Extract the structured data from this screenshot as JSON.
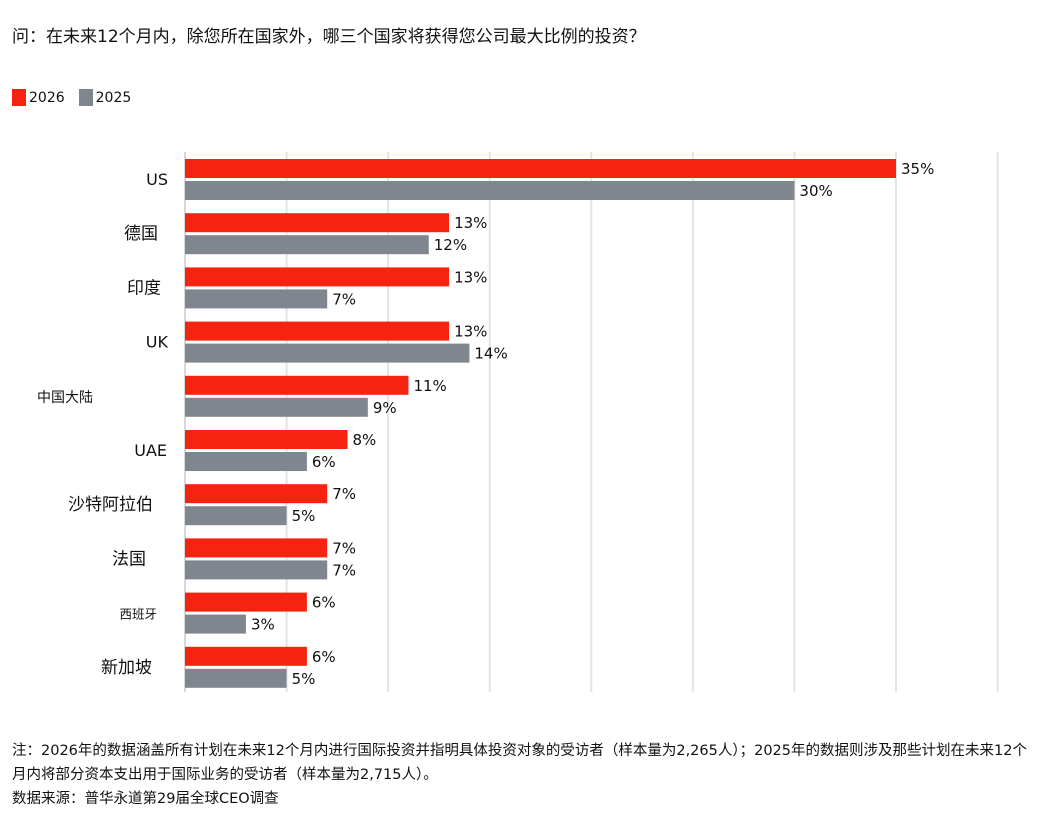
{
  "colors": {
    "2026": "#f5230f",
    "2025": "#808690",
    "grid": "#e3e3e3"
  },
  "chart_data": {
    "type": "bar",
    "orientation": "horizontal",
    "title": "问：在未来12个月内，除您所在国家外，哪三个国家将获得您公司最大比例的投资？",
    "categories": [
      "US",
      "德国",
      "印度",
      "UK",
      "中国大陆",
      "UAE",
      "沙特阿拉伯",
      "法国",
      "西班牙",
      "新加坡"
    ],
    "series": [
      {
        "name": "2026",
        "values": [
          35,
          13,
          13,
          13,
          11,
          8,
          7,
          7,
          6,
          6
        ]
      },
      {
        "name": "2025",
        "values": [
          30,
          12,
          7,
          14,
          9,
          6,
          5,
          7,
          3,
          5
        ]
      }
    ],
    "value_suffix": "%",
    "xlim": [
      0,
      40
    ],
    "grid_step": 5,
    "grid": true,
    "legend_placement": "top-left"
  },
  "footnote": {
    "note": "注：2026年的数据涵盖所有计划在未来12个月内进行国际投资并指明具体投资对象的受访者（样本量为2,265人）；2025年的数据则涉及那些计划在未来12个月内将部分资本支出用于国际业务的受访者（样本量为2,715人）。",
    "source": "数据来源：普华永道第29届全球CEO调查"
  }
}
